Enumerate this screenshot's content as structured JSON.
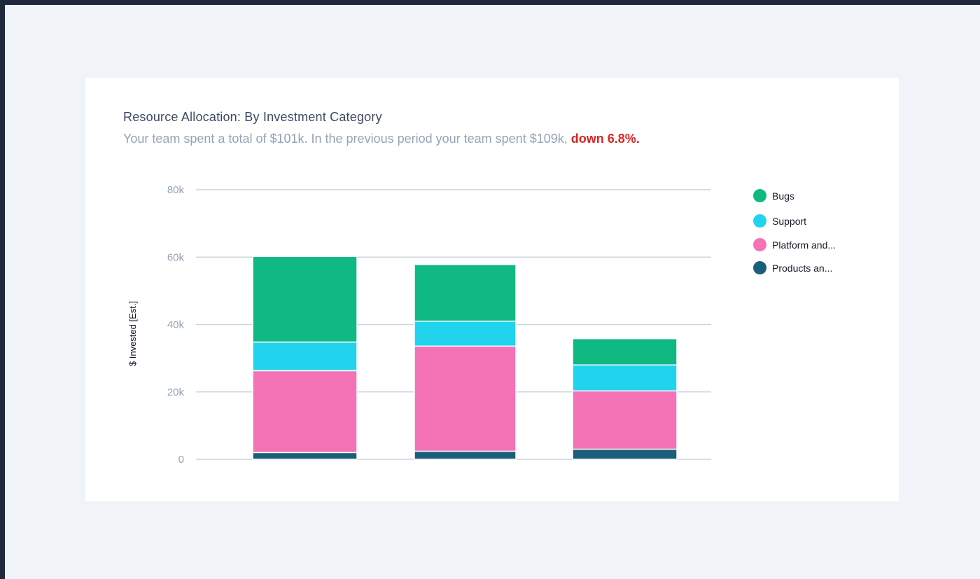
{
  "title": "Resource Allocation: By Investment Category",
  "subtitle": {
    "text": "Your team spent a total of $101k. In the previous period your team spent $109k,",
    "change": "down 6.8%."
  },
  "colors": {
    "Bugs": "#10b981",
    "Support": "#22d3ee",
    "Platform and...": "#f472b6",
    "Products an...": "#1a5f7a",
    "grid": "#cbd5e1",
    "down": "#dc2626"
  },
  "legend": [
    {
      "label": "Bugs",
      "color": "#10b981"
    },
    {
      "label": "Support",
      "color": "#22d3ee"
    },
    {
      "label": "Platform and...",
      "color": "#f472b6"
    },
    {
      "label": "Products an...",
      "color": "#1a5f7a"
    }
  ],
  "chart_data": {
    "type": "bar",
    "stacked": true,
    "ylabel": "$ Invested [Est.]",
    "ylim": [
      0,
      80000
    ],
    "yticks": [
      0,
      20000,
      40000,
      60000,
      80000
    ],
    "ytick_labels": [
      "0",
      "20k",
      "40k",
      "60k",
      "80k"
    ],
    "grid": true,
    "legend_position": "right",
    "categories": [
      "",
      "",
      ""
    ],
    "series": [
      {
        "name": "Products an...",
        "values": [
          2000,
          2400,
          3000
        ]
      },
      {
        "name": "Platform and...",
        "values": [
          24300,
          31200,
          17300
        ]
      },
      {
        "name": "Support",
        "values": [
          8500,
          7400,
          7700
        ]
      },
      {
        "name": "Bugs",
        "values": [
          25400,
          16800,
          7800
        ]
      }
    ]
  }
}
